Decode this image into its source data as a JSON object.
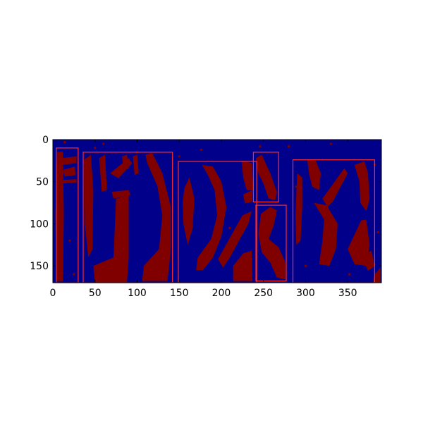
{
  "chart_data": {
    "type": "heatmap",
    "title": "",
    "xlabel": "",
    "ylabel": "",
    "xlim": [
      0,
      390
    ],
    "ylim": [
      170,
      0
    ],
    "image_extent": {
      "width": 390,
      "height": 170
    },
    "colors": {
      "background": "#00008b",
      "foreground": "#800000",
      "box_edge": "#ff2a2a",
      "axis": "#000000"
    },
    "x_ticks": [
      0,
      50,
      100,
      150,
      200,
      250,
      300,
      350
    ],
    "x_tick_labels": [
      "0",
      "50",
      "100",
      "150",
      "200",
      "250",
      "300",
      "350"
    ],
    "y_ticks": [
      0,
      50,
      100,
      150
    ],
    "y_tick_labels": [
      "0",
      "50",
      "100",
      "150"
    ],
    "boxes": [
      {
        "x0": 4,
        "y0": 10,
        "x1": 30,
        "y1": 170
      },
      {
        "x0": 36,
        "y0": 15,
        "x1": 142,
        "y1": 170
      },
      {
        "x0": 149,
        "y0": 26,
        "x1": 242,
        "y1": 170
      },
      {
        "x0": 238,
        "y0": 15,
        "x1": 268,
        "y1": 74
      },
      {
        "x0": 241,
        "y0": 78,
        "x1": 277,
        "y1": 168
      },
      {
        "x0": 285,
        "y0": 24,
        "x1": 382,
        "y1": 170
      }
    ],
    "blobs": [
      {
        "points": [
          [
            5,
            15
          ],
          [
            12,
            14
          ],
          [
            13,
            90
          ],
          [
            12,
            168
          ],
          [
            4,
            168
          ],
          [
            3,
            90
          ]
        ]
      },
      {
        "points": [
          [
            10,
            22
          ],
          [
            28,
            20
          ],
          [
            28,
            28
          ],
          [
            12,
            30
          ]
        ]
      },
      {
        "points": [
          [
            12,
            36
          ],
          [
            26,
            32
          ],
          [
            27,
            42
          ],
          [
            14,
            44
          ]
        ]
      },
      {
        "points": [
          [
            12,
            48
          ],
          [
            28,
            47
          ],
          [
            28,
            51
          ],
          [
            12,
            52
          ]
        ]
      },
      {
        "points": [
          [
            37,
            24
          ],
          [
            45,
            18
          ],
          [
            48,
            60
          ],
          [
            47,
            130
          ],
          [
            42,
            140
          ],
          [
            38,
            100
          ]
        ]
      },
      {
        "points": [
          [
            55,
            22
          ],
          [
            62,
            18
          ],
          [
            64,
            60
          ],
          [
            58,
            62
          ]
        ]
      },
      {
        "points": [
          [
            68,
            40
          ],
          [
            90,
            22
          ],
          [
            94,
            28
          ],
          [
            78,
            46
          ]
        ]
      },
      {
        "points": [
          [
            70,
            62
          ],
          [
            90,
            60
          ],
          [
            92,
            66
          ],
          [
            72,
            70
          ]
        ]
      },
      {
        "points": [
          [
            82,
            20
          ],
          [
            88,
            18
          ],
          [
            90,
            35
          ],
          [
            84,
            36
          ]
        ]
      },
      {
        "points": [
          [
            75,
            70
          ],
          [
            90,
            66
          ],
          [
            90,
            140
          ],
          [
            88,
            170
          ],
          [
            50,
            170
          ],
          [
            48,
            150
          ],
          [
            72,
            140
          ]
        ]
      },
      {
        "points": [
          [
            95,
            20
          ],
          [
            100,
            18
          ],
          [
            102,
            40
          ],
          [
            97,
            42
          ]
        ]
      },
      {
        "points": [
          [
            110,
            18
          ],
          [
            118,
            16
          ],
          [
            130,
            40
          ],
          [
            140,
            80
          ],
          [
            140,
            130
          ],
          [
            136,
            168
          ],
          [
            106,
            168
          ],
          [
            108,
            150
          ],
          [
            126,
            130
          ],
          [
            130,
            90
          ],
          [
            124,
            55
          ],
          [
            112,
            28
          ]
        ]
      },
      {
        "points": [
          [
            156,
            58
          ],
          [
            162,
            45
          ],
          [
            168,
            70
          ],
          [
            166,
            105
          ],
          [
            160,
            125
          ],
          [
            155,
            100
          ],
          [
            154,
            75
          ]
        ]
      },
      {
        "points": [
          [
            177,
            30
          ],
          [
            190,
            32
          ],
          [
            200,
            50
          ],
          [
            206,
            80
          ],
          [
            200,
            115
          ],
          [
            190,
            140
          ],
          [
            178,
            155
          ],
          [
            170,
            155
          ],
          [
            172,
            140
          ],
          [
            188,
            118
          ],
          [
            195,
            90
          ],
          [
            192,
            60
          ],
          [
            184,
            42
          ]
        ]
      },
      {
        "points": [
          [
            196,
            142
          ],
          [
            225,
            90
          ],
          [
            236,
            85
          ],
          [
            232,
            100
          ],
          [
            210,
            140
          ],
          [
            202,
            152
          ]
        ]
      },
      {
        "points": [
          [
            224,
            25
          ],
          [
            236,
            28
          ],
          [
            238,
            60
          ],
          [
            230,
            60
          ],
          [
            226,
            45
          ]
        ]
      },
      {
        "points": [
          [
            226,
            65
          ],
          [
            237,
            60
          ],
          [
            236,
            74
          ],
          [
            228,
            76
          ]
        ]
      },
      {
        "points": [
          [
            214,
            150
          ],
          [
            226,
            135
          ],
          [
            236,
            132
          ],
          [
            237,
            168
          ],
          [
            214,
            168
          ]
        ]
      },
      {
        "points": [
          [
            241,
            22
          ],
          [
            248,
            18
          ],
          [
            258,
            40
          ],
          [
            266,
            62
          ],
          [
            264,
            72
          ],
          [
            256,
            70
          ],
          [
            250,
            52
          ],
          [
            243,
            38
          ]
        ]
      },
      {
        "points": [
          [
            247,
            88
          ],
          [
            258,
            80
          ],
          [
            266,
            84
          ],
          [
            262,
            102
          ],
          [
            256,
            118
          ],
          [
            268,
            128
          ],
          [
            276,
            146
          ],
          [
            276,
            166
          ],
          [
            266,
            164
          ],
          [
            258,
            146
          ],
          [
            248,
            134
          ],
          [
            244,
            112
          ]
        ]
      },
      {
        "points": [
          [
            290,
            40
          ],
          [
            296,
            45
          ],
          [
            296,
            80
          ],
          [
            294,
            120
          ],
          [
            289,
            125
          ],
          [
            288,
            90
          ]
        ]
      },
      {
        "points": [
          [
            302,
            24
          ],
          [
            312,
            25
          ],
          [
            318,
            40
          ],
          [
            316,
            60
          ],
          [
            308,
            56
          ],
          [
            304,
            40
          ]
        ]
      },
      {
        "points": [
          [
            320,
            70
          ],
          [
            346,
            34
          ],
          [
            350,
            40
          ],
          [
            332,
            74
          ],
          [
            326,
            80
          ]
        ]
      },
      {
        "points": [
          [
            310,
            75
          ],
          [
            325,
            78
          ],
          [
            338,
            100
          ],
          [
            336,
            130
          ],
          [
            328,
            150
          ],
          [
            316,
            148
          ],
          [
            320,
            120
          ],
          [
            322,
            95
          ]
        ]
      },
      {
        "points": [
          [
            350,
            130
          ],
          [
            366,
            96
          ],
          [
            372,
            95
          ],
          [
            376,
            125
          ],
          [
            372,
            150
          ],
          [
            358,
            148
          ]
        ]
      },
      {
        "points": [
          [
            358,
            30
          ],
          [
            370,
            26
          ],
          [
            374,
            40
          ],
          [
            376,
            70
          ],
          [
            372,
            85
          ],
          [
            365,
            75
          ],
          [
            364,
            50
          ]
        ]
      },
      {
        "points": [
          [
            366,
            138
          ],
          [
            378,
            132
          ],
          [
            382,
            150
          ],
          [
            374,
            156
          ]
        ]
      },
      {
        "points": [
          [
            382,
            160
          ],
          [
            389,
            152
          ],
          [
            389,
            170
          ],
          [
            380,
            170
          ]
        ]
      }
    ],
    "speckles": [
      [
        8,
        70
      ],
      [
        20,
        120
      ],
      [
        25,
        160
      ],
      [
        50,
        10
      ],
      [
        100,
        15
      ],
      [
        150,
        20
      ],
      [
        176,
        12
      ],
      [
        200,
        70
      ],
      [
        210,
        105
      ],
      [
        222,
        110
      ],
      [
        246,
        8
      ],
      [
        252,
        40
      ],
      [
        280,
        8
      ],
      [
        289,
        56
      ],
      [
        300,
        150
      ],
      [
        330,
        5
      ],
      [
        352,
        160
      ],
      [
        382,
        30
      ],
      [
        386,
        110
      ],
      [
        14,
        3
      ],
      [
        60,
        5
      ]
    ]
  }
}
